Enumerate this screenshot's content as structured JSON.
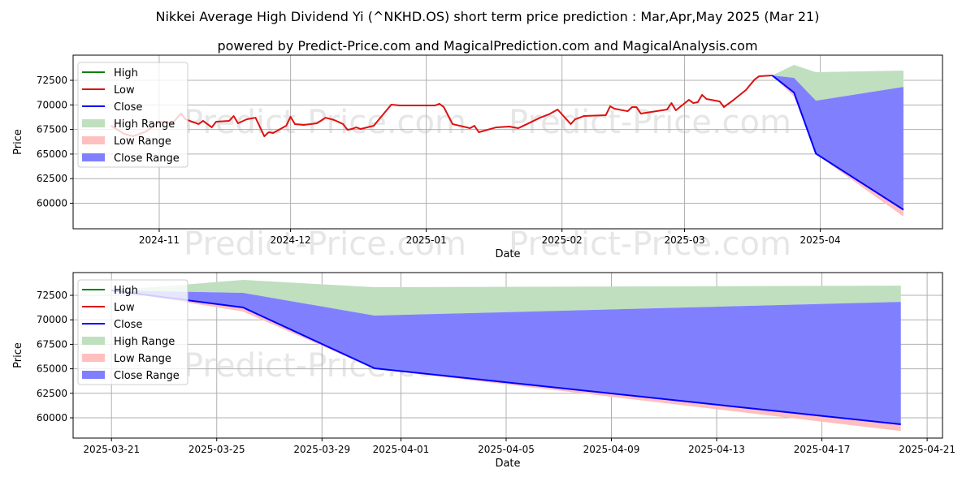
{
  "title": "Nikkei Average High Dividend Yi (^NKHD.OS) short term price prediction : Mar,Apr,May 2025 (Mar 21)",
  "subtitle": "powered by Predict-Price.com and MagicalPrediction.com and MagicalAnalysis.com",
  "watermark": "Predict-Price.com",
  "colors": {
    "high": "#008000",
    "low": "#dd1111",
    "close": "#0000ff",
    "high_range": "#bfdfbf",
    "low_range": "#ffbfbf",
    "close_range": "#8080ff",
    "grid": "#b0b0b0"
  },
  "legend": [
    "High",
    "Low",
    "Close",
    "High Range",
    "Low Range",
    "Close Range"
  ],
  "chart_data": [
    {
      "type": "line",
      "xlabel": "Date",
      "ylabel": "Price",
      "xlim": [
        "2024-10-12T08:00Z",
        "2025-04-28T22:00Z"
      ],
      "ylim": [
        57400,
        75060
      ],
      "grid": true,
      "legend_position": "top-left",
      "xticks": [
        "2024-11",
        "2024-12",
        "2025-01",
        "2025-02",
        "2025-03",
        "2025-04"
      ],
      "yticks": [
        60000,
        62500,
        65000,
        67500,
        70000,
        72500
      ],
      "history": {
        "name": "Low",
        "x": [
          "2024-10-21",
          "2024-10-24",
          "2024-10-26",
          "2024-10-29",
          "2024-11-01",
          "2024-11-04",
          "2024-11-06",
          "2024-11-07",
          "2024-11-10",
          "2024-11-11",
          "2024-11-13",
          "2024-11-14",
          "2024-11-17",
          "2024-11-18",
          "2024-11-19",
          "2024-11-21",
          "2024-11-23",
          "2024-11-25",
          "2024-11-26",
          "2024-11-27",
          "2024-11-30",
          "2024-12-01",
          "2024-12-02",
          "2024-12-04",
          "2024-12-07",
          "2024-12-09",
          "2024-12-11",
          "2024-12-13",
          "2024-12-14",
          "2024-12-15",
          "2024-12-16",
          "2024-12-17",
          "2024-12-20",
          "2024-12-22",
          "2024-12-24",
          "2024-12-26",
          "2025-01-03",
          "2025-01-04",
          "2025-01-05",
          "2025-01-07",
          "2025-01-11",
          "2025-01-12",
          "2025-01-13",
          "2025-01-17",
          "2025-01-20",
          "2025-01-22",
          "2025-01-24",
          "2025-01-27",
          "2025-01-29",
          "2025-01-31",
          "2025-02-03",
          "2025-02-04",
          "2025-02-06",
          "2025-02-11",
          "2025-02-12",
          "2025-02-13",
          "2025-02-16",
          "2025-02-17",
          "2025-02-18",
          "2025-02-19",
          "2025-02-25",
          "2025-02-26",
          "2025-02-27",
          "2025-03-02",
          "2025-03-03",
          "2025-03-04",
          "2025-03-05",
          "2025-03-06",
          "2025-03-09",
          "2025-03-10",
          "2025-03-12",
          "2025-03-15",
          "2025-03-17",
          "2025-03-18",
          "2025-03-21"
        ],
        "y": [
          67880,
          67055,
          66810,
          67300,
          68290,
          68130,
          69120,
          68540,
          68050,
          68380,
          67720,
          68290,
          68380,
          68870,
          68130,
          68540,
          68700,
          66810,
          67220,
          67140,
          67880,
          68790,
          68050,
          67960,
          68130,
          68700,
          68460,
          68050,
          67470,
          67550,
          67720,
          67550,
          67880,
          68950,
          70030,
          69940,
          69940,
          70110,
          69780,
          68050,
          67630,
          67880,
          67220,
          67720,
          67800,
          67630,
          68050,
          68700,
          69040,
          69530,
          68050,
          68540,
          68870,
          68950,
          69860,
          69610,
          69360,
          69780,
          69780,
          69120,
          69530,
          70190,
          69450,
          70520,
          70190,
          70270,
          71020,
          70600,
          70360,
          69780,
          70440,
          71510,
          72580,
          72910,
          73000
        ]
      },
      "forecast": {
        "x": [
          "2025-03-21",
          "2025-03-26",
          "2025-03-31",
          "2025-04-20"
        ],
        "close": [
          73000,
          71260,
          65050,
          59340
        ],
        "high_range": {
          "low": [
            73000,
            72750,
            70430,
            71830
          ],
          "high": [
            73000,
            74070,
            73330,
            73490
          ]
        },
        "low_range": {
          "low": [
            73000,
            70850,
            65000,
            58650
          ],
          "high": [
            73000,
            71260,
            65050,
            59340
          ]
        },
        "close_range": {
          "low": [
            73000,
            71260,
            65050,
            59340
          ],
          "high": [
            73000,
            72750,
            70430,
            71830
          ]
        }
      }
    },
    {
      "type": "line",
      "xlabel": "Date",
      "ylabel": "Price",
      "xlim": [
        "2025-03-19T13:00Z",
        "2025-04-21T14:00Z"
      ],
      "ylim": [
        57930,
        74820
      ],
      "grid": true,
      "legend_position": "top-left",
      "xticks": [
        "2025-03-21",
        "2025-03-25",
        "2025-03-29",
        "2025-04-01",
        "2025-04-05",
        "2025-04-09",
        "2025-04-13",
        "2025-04-17",
        "2025-04-21"
      ],
      "yticks": [
        60000,
        62500,
        65000,
        67500,
        70000,
        72500
      ],
      "forecast": {
        "x": [
          "2025-03-21",
          "2025-03-26",
          "2025-03-31",
          "2025-04-20"
        ],
        "close": [
          73000,
          71260,
          65050,
          59340
        ],
        "high_range": {
          "low": [
            73000,
            72750,
            70430,
            71830
          ],
          "high": [
            73000,
            74070,
            73330,
            73490
          ]
        },
        "low_range": {
          "low": [
            73000,
            70850,
            65000,
            58650
          ],
          "high": [
            73000,
            71260,
            65050,
            59340
          ]
        },
        "close_range": {
          "low": [
            73000,
            71260,
            65050,
            59340
          ],
          "high": [
            73000,
            72750,
            70430,
            71830
          ]
        }
      }
    }
  ]
}
